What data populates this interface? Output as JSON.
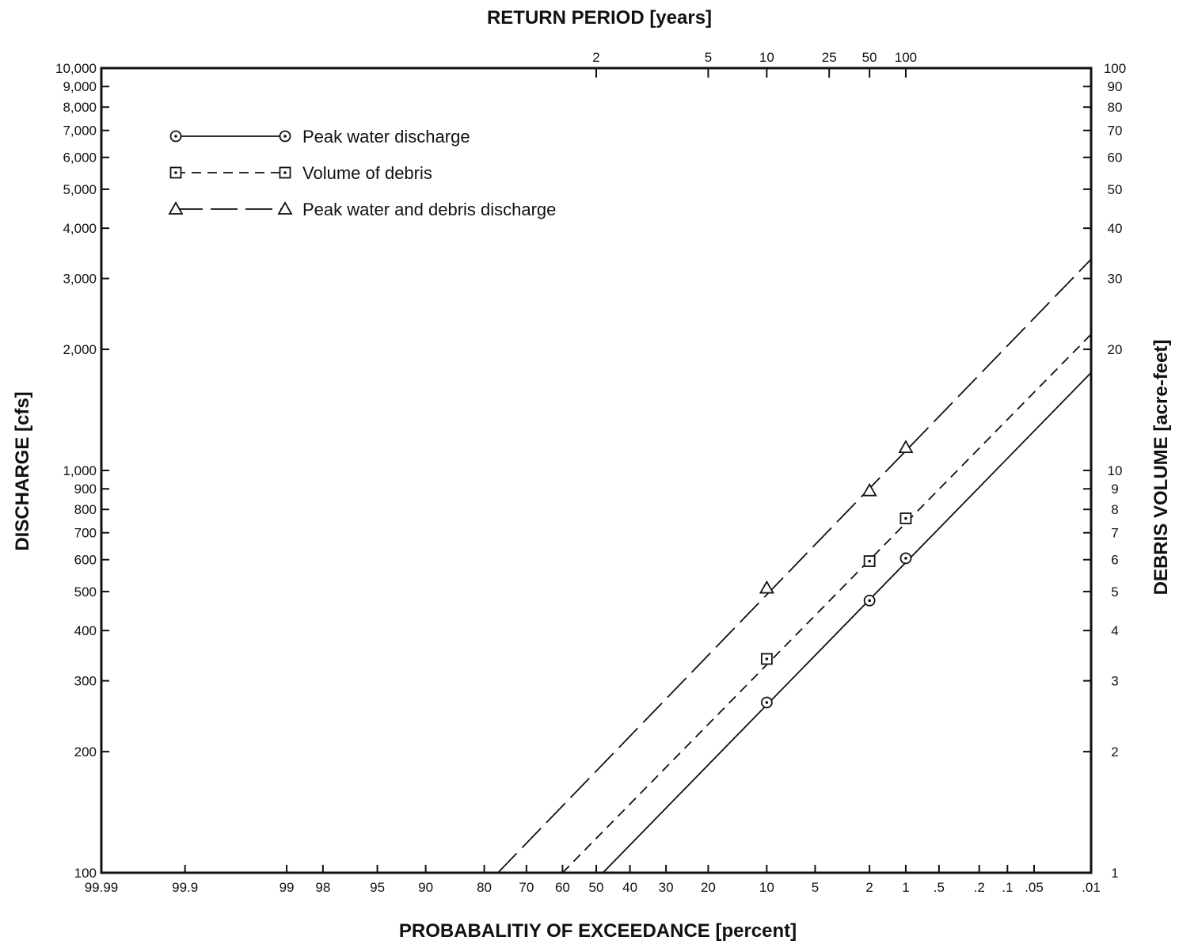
{
  "chart_data": {
    "type": "line",
    "title": "",
    "top_axis": {
      "label": "RETURN PERIOD [years]",
      "ticks": [
        {
          "label": "2",
          "exceedance_percent": 50
        },
        {
          "label": "5",
          "exceedance_percent": 20
        },
        {
          "label": "10",
          "exceedance_percent": 10
        },
        {
          "label": "25",
          "exceedance_percent": 4
        },
        {
          "label": "50",
          "exceedance_percent": 2
        },
        {
          "label": "100",
          "exceedance_percent": 1
        }
      ]
    },
    "x_axis": {
      "label": "PROBABALITIY OF EXCEEDANCE [percent]",
      "scale": "normal-probability",
      "range": [
        99.99,
        0.01
      ],
      "ticks": [
        {
          "label": "99.99",
          "value": 99.99
        },
        {
          "label": "99.9",
          "value": 99.9
        },
        {
          "label": "99",
          "value": 99
        },
        {
          "label": "98",
          "value": 98
        },
        {
          "label": "95",
          "value": 95
        },
        {
          "label": "90",
          "value": 90
        },
        {
          "label": "80",
          "value": 80
        },
        {
          "label": "70",
          "value": 70
        },
        {
          "label": "60",
          "value": 60
        },
        {
          "label": "50",
          "value": 50
        },
        {
          "label": "40",
          "value": 40
        },
        {
          "label": "30",
          "value": 30
        },
        {
          "label": "20",
          "value": 20
        },
        {
          "label": "10",
          "value": 10
        },
        {
          "label": "5",
          "value": 5
        },
        {
          "label": "2",
          "value": 2
        },
        {
          "label": "1",
          "value": 1
        },
        {
          "label": ".5",
          "value": 0.5
        },
        {
          "label": ".2",
          "value": 0.2
        },
        {
          "label": ".1",
          "value": 0.1
        },
        {
          "label": ".05",
          "value": 0.05
        },
        {
          "label": ".01",
          "value": 0.01
        }
      ]
    },
    "y_axis": {
      "label": "DISCHARGE [cfs]",
      "scale": "log",
      "range": [
        100,
        10000
      ],
      "ticks": [
        {
          "label": "100",
          "value": 100
        },
        {
          "label": "200",
          "value": 200
        },
        {
          "label": "300",
          "value": 300
        },
        {
          "label": "400",
          "value": 400
        },
        {
          "label": "500",
          "value": 500
        },
        {
          "label": "600",
          "value": 600
        },
        {
          "label": "700",
          "value": 700
        },
        {
          "label": "800",
          "value": 800
        },
        {
          "label": "900",
          "value": 900
        },
        {
          "label": "1,000",
          "value": 1000
        },
        {
          "label": "2,000",
          "value": 2000
        },
        {
          "label": "3,000",
          "value": 3000
        },
        {
          "label": "4,000",
          "value": 4000
        },
        {
          "label": "5,000",
          "value": 5000
        },
        {
          "label": "6,000",
          "value": 6000
        },
        {
          "label": "7,000",
          "value": 7000
        },
        {
          "label": "8,000",
          "value": 8000
        },
        {
          "label": "9,000",
          "value": 9000
        },
        {
          "label": "10,000",
          "value": 10000
        }
      ]
    },
    "y2_axis": {
      "label": "DEBRIS VOLUME [acre-feet]",
      "scale": "log",
      "range": [
        1,
        100
      ],
      "ticks": [
        {
          "label": "1",
          "value": 1
        },
        {
          "label": "2",
          "value": 2
        },
        {
          "label": "3",
          "value": 3
        },
        {
          "label": "4",
          "value": 4
        },
        {
          "label": "5",
          "value": 5
        },
        {
          "label": "6",
          "value": 6
        },
        {
          "label": "7",
          "value": 7
        },
        {
          "label": "8",
          "value": 8
        },
        {
          "label": "9",
          "value": 9
        },
        {
          "label": "10",
          "value": 10
        },
        {
          "label": "20",
          "value": 20
        },
        {
          "label": "30",
          "value": 30
        },
        {
          "label": "40",
          "value": 40
        },
        {
          "label": "50",
          "value": 50
        },
        {
          "label": "60",
          "value": 60
        },
        {
          "label": "70",
          "value": 70
        },
        {
          "label": "80",
          "value": 80
        },
        {
          "label": "90",
          "value": 90
        },
        {
          "label": "100",
          "value": 100
        }
      ]
    },
    "legend_placement": "top-left",
    "grid": false,
    "series": [
      {
        "name": "Peak water discharge",
        "axis": "left",
        "marker": "circle-dot",
        "line_style": "solid",
        "points": [
          {
            "x": 10,
            "y": 265
          },
          {
            "x": 2,
            "y": 475
          },
          {
            "x": 1,
            "y": 605
          }
        ],
        "fit_line": [
          {
            "x": 48,
            "y": 100
          },
          {
            "x": 0.01,
            "y": 1750
          }
        ]
      },
      {
        "name": "Volume of debris",
        "axis": "right",
        "marker": "square-dot",
        "line_style": "dashed",
        "points": [
          {
            "x": 10,
            "y": 3.4
          },
          {
            "x": 2,
            "y": 5.95
          },
          {
            "x": 1,
            "y": 7.6
          }
        ],
        "fit_line": [
          {
            "x": 60,
            "y": 1
          },
          {
            "x": 0.01,
            "y": 21.8
          }
        ]
      },
      {
        "name": "Peak water and debris discharge",
        "axis": "left",
        "marker": "triangle",
        "line_style": "long-dash",
        "points": [
          {
            "x": 10,
            "y": 510
          },
          {
            "x": 2,
            "y": 890
          },
          {
            "x": 1,
            "y": 1140
          }
        ],
        "fit_line": [
          {
            "x": 77,
            "y": 100
          },
          {
            "x": 0.01,
            "y": 3350
          }
        ]
      }
    ]
  }
}
